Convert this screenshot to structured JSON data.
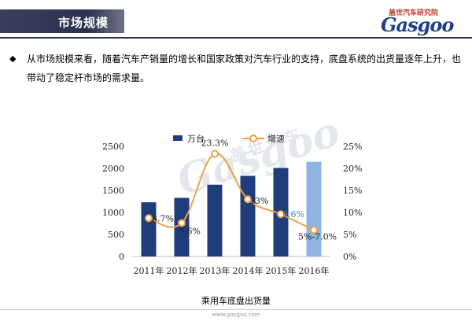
{
  "header": {
    "title": "市场规模",
    "logo_cn": "盖世汽车研究院",
    "logo_en": "Gasgoo"
  },
  "intro": {
    "bullet_icon": "diamond-bullet-icon",
    "text": "从市场规模来看，随着汽车产销量的增长和国家政策对汽车行业的支持，底盘系统的出货量逐年上升，也带动了稳定杆市场的需求量。"
  },
  "watermark": {
    "en": "Gasgoo",
    "cn": "盖世汽车"
  },
  "caption": "乘用车底盘出货量",
  "footer": {
    "url": "www.gasgoo.com"
  },
  "colors": {
    "bar": "#1f3d7a",
    "bar_forecast": "#8eb4e3",
    "line": "#f0a040",
    "marker_fill": "#ffffff",
    "highlight_label": "#3b7fc4"
  },
  "chart_data": {
    "type": "bar",
    "categories": [
      "2011年",
      "2012年",
      "2013年",
      "2014年",
      "2015年",
      "2016年"
    ],
    "series": [
      {
        "name": "万台",
        "axis": "left",
        "type": "bar",
        "values": [
          1230,
          1330,
          1630,
          1830,
          2010,
          2150
        ]
      },
      {
        "name": "增速",
        "axis": "right",
        "type": "line",
        "values": [
          8.7,
          7.6,
          23.3,
          13.0,
          9.6,
          6.0
        ],
        "labels": [
          "8.7%",
          "7.6%",
          "23.3%",
          "13%",
          "9.6%",
          "5%-7.0%"
        ]
      }
    ],
    "left_axis": {
      "ylim": [
        0,
        2500
      ],
      "ticks": [
        "0",
        "500",
        "1000",
        "1500",
        "2000",
        "2500"
      ]
    },
    "right_axis": {
      "ylim": [
        0,
        25
      ],
      "ticks": [
        "0%",
        "5%",
        "10%",
        "15%",
        "20%",
        "25%"
      ]
    },
    "legend": "top-center",
    "grid": false
  }
}
